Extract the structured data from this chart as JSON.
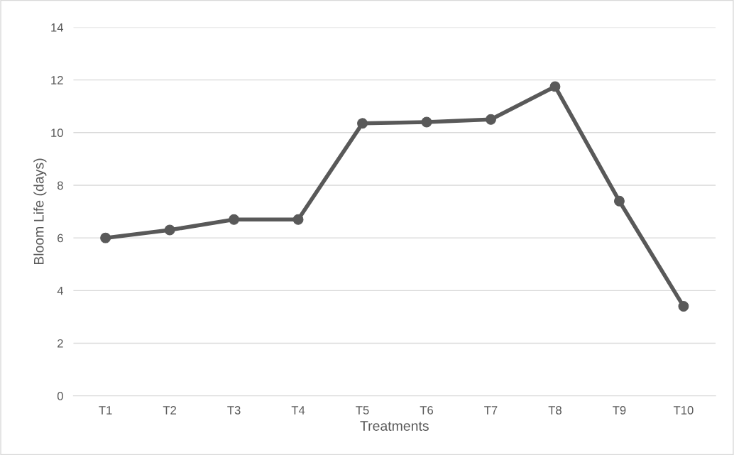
{
  "chart_data": {
    "type": "line",
    "xlabel": "Treatments",
    "ylabel": "Bloom Life (days)",
    "categories": [
      "T1",
      "T2",
      "T3",
      "T4",
      "T5",
      "T6",
      "T7",
      "T8",
      "T9",
      "T10"
    ],
    "series": [
      {
        "color": "#595959",
        "values": [
          6.0,
          6.3,
          6.7,
          6.7,
          10.35,
          10.4,
          10.5,
          11.75,
          7.4,
          3.4
        ]
      }
    ],
    "ylim": [
      0,
      14
    ],
    "yticks": [
      0,
      2,
      4,
      6,
      8,
      10,
      12,
      14
    ],
    "grid": "y",
    "marker": "circle",
    "line_style": "solid",
    "legend": false
  }
}
